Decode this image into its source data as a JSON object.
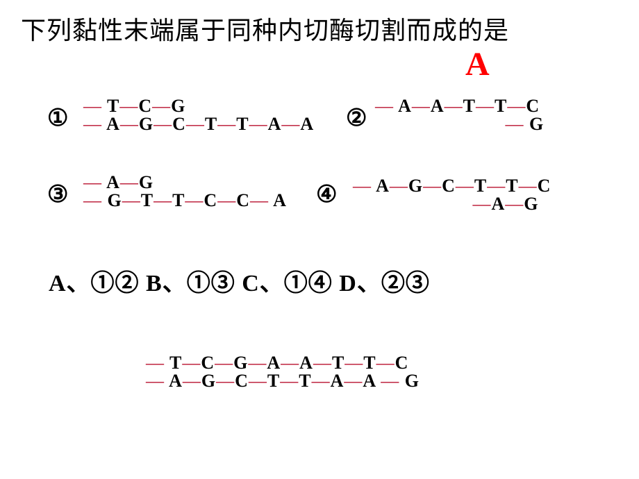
{
  "question": "下列黏性末端属于同种内切酶切割而成的是",
  "answer": "A",
  "answer_color": "#ff0000",
  "items": {
    "one": {
      "label": "①",
      "top": "— T—C—G",
      "bot": "— A—G—C—T—T—A—A"
    },
    "two": {
      "label": "②",
      "top": "— A—A—T—T—C",
      "bot": "                         — G"
    },
    "three": {
      "label": "③",
      "top": "— A—G",
      "bot": "— G—T—T—C—C— A"
    },
    "four": {
      "label": "④",
      "top": "— A—G—C—T—T—C",
      "bot": "                       —A—G"
    }
  },
  "options_text": "A、①②    B、①③    C、①④    D、②③",
  "combined": {
    "top": "— T—C—G—A—A—T—T—C",
    "bot": "— A—G—C—T—T—A—A — G"
  },
  "style": {
    "dash_color": "#b8102e",
    "letter_color": "#000000",
    "question_fontsize": 36,
    "answer_fontsize": 48,
    "seq_fontsize": 26,
    "circled_fontsize": 34,
    "background": "#ffffff"
  }
}
